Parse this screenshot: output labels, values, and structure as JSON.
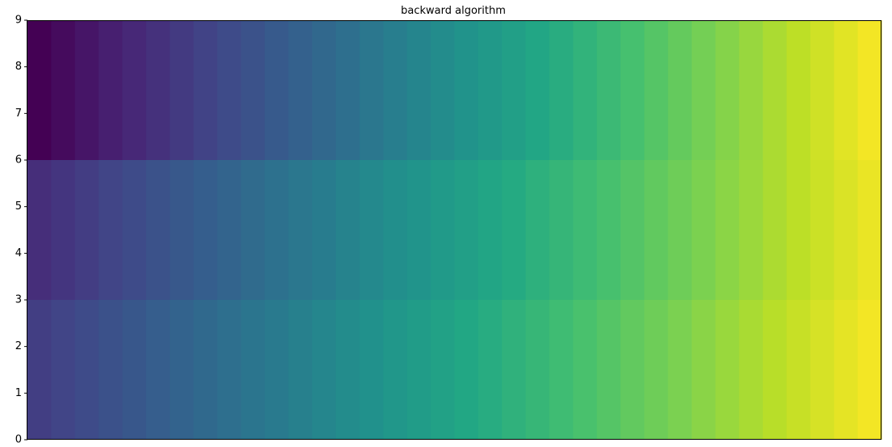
{
  "chart_data": {
    "type": "heatmap",
    "title": "backward algorithm",
    "xlabel": "",
    "ylabel": "",
    "ylim": [
      0,
      9
    ],
    "y_ticks": [
      "0",
      "1",
      "2",
      "3",
      "4",
      "5",
      "6",
      "7",
      "8",
      "9"
    ],
    "x_ticks_visible": false,
    "colormap": "viridis",
    "value_range": [
      0,
      1
    ],
    "bands": [
      {
        "y_range": [
          0,
          3
        ],
        "start": 0.18,
        "end": 0.985
      },
      {
        "y_range": [
          3,
          6
        ],
        "start": 0.13,
        "end": 0.97
      },
      {
        "y_range": [
          6,
          9
        ],
        "start": 0.0,
        "end": 0.985
      }
    ],
    "n_columns": 36,
    "grid": false,
    "legend": "none"
  }
}
